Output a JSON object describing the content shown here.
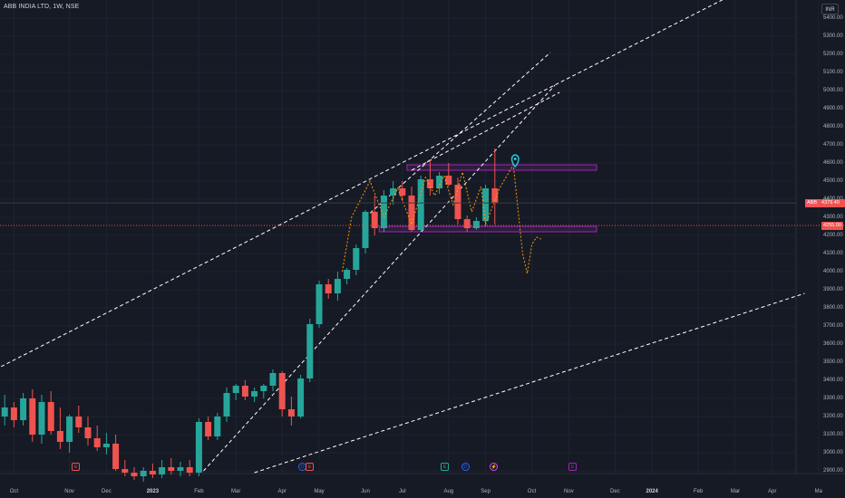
{
  "symbol_title": "ABB INDIA LTD, 1W, NSE",
  "currency": "INR",
  "price_label": {
    "symbol": "ABB",
    "value": "4379.40"
  },
  "line_label": "4255.00",
  "markers": [
    "E",
    "D",
    "E",
    "E",
    "D",
    "⚡",
    "E"
  ],
  "colors": {
    "background": "#161a25",
    "up": "#26a69a",
    "down": "#ef5350",
    "zone": "#9c27b0",
    "trendline": "#ffffff",
    "projection": "#ff9800"
  },
  "chart_data": {
    "type": "candlestick",
    "title": "ABB INDIA LTD, 1W, NSE",
    "xlabel": "",
    "ylabel": "",
    "ylim": [
      2900,
      5500
    ],
    "y_ticks": [
      2900,
      3000,
      3100,
      3200,
      3300,
      3400,
      3500,
      3600,
      3700,
      3800,
      3900,
      4000,
      4100,
      4200,
      4300,
      4400,
      4500,
      4600,
      4700,
      4800,
      4900,
      5000,
      5100,
      5200,
      5300,
      5400
    ],
    "y_tick_labels": [
      "2900.00",
      "3000.00",
      "3100.00",
      "3200.00",
      "3300.00",
      "3400.00",
      "3500.00",
      "3600.00",
      "3700.00",
      "3800.00",
      "3900.00",
      "4000.00",
      "4100.00",
      "4200.00",
      "4300.00",
      "4400.00",
      "4500.00",
      "4600.00",
      "4700.00",
      "4800.00",
      "4900.00",
      "5000.00",
      "5100.00",
      "5200.00",
      "5300.00",
      "5400.00"
    ],
    "x_labels": [
      "Oct",
      "Nov",
      "Dec",
      "2023",
      "Feb",
      "Mar",
      "Apr",
      "May",
      "Jun",
      "Jul",
      "Aug",
      "Sep",
      "Oct",
      "Nov",
      "Dec",
      "2024",
      "Feb",
      "Mar",
      "Apr",
      "Ma"
    ],
    "x_label_weeks": [
      2,
      8,
      12,
      17,
      22,
      26,
      31,
      35,
      40,
      44,
      49,
      53,
      58,
      62,
      67,
      71,
      76,
      80,
      84,
      89
    ],
    "candles": [
      [
        0,
        3380,
        3430,
        3150,
        3200
      ],
      [
        1,
        3200,
        3320,
        3150,
        3250
      ],
      [
        2,
        3250,
        3280,
        3140,
        3180
      ],
      [
        3,
        3180,
        3330,
        3150,
        3300
      ],
      [
        4,
        3300,
        3350,
        3060,
        3100
      ],
      [
        5,
        3100,
        3320,
        3050,
        3280
      ],
      [
        6,
        3280,
        3340,
        3100,
        3120
      ],
      [
        7,
        3120,
        3250,
        3020,
        3060
      ],
      [
        8,
        3060,
        3210,
        3000,
        3200
      ],
      [
        9,
        3200,
        3260,
        3110,
        3140
      ],
      [
        10,
        3140,
        3200,
        3040,
        3080
      ],
      [
        11,
        3080,
        3150,
        3010,
        3030
      ],
      [
        12,
        3030,
        3110,
        2990,
        3050
      ],
      [
        13,
        3050,
        3100,
        2900,
        2910
      ],
      [
        14,
        2910,
        2960,
        2870,
        2890
      ],
      [
        15,
        2890,
        2920,
        2850,
        2870
      ],
      [
        16,
        2870,
        2920,
        2840,
        2900
      ],
      [
        17,
        2900,
        2940,
        2860,
        2880
      ],
      [
        18,
        2880,
        2960,
        2860,
        2920
      ],
      [
        19,
        2920,
        2970,
        2880,
        2900
      ],
      [
        20,
        2900,
        2950,
        2870,
        2920
      ],
      [
        21,
        2920,
        2960,
        2870,
        2890
      ],
      [
        22,
        2890,
        3190,
        2870,
        3170
      ],
      [
        23,
        3170,
        3200,
        3070,
        3090
      ],
      [
        24,
        3090,
        3220,
        3070,
        3200
      ],
      [
        25,
        3200,
        3360,
        3170,
        3330
      ],
      [
        26,
        3330,
        3380,
        3290,
        3370
      ],
      [
        27,
        3370,
        3400,
        3290,
        3310
      ],
      [
        28,
        3310,
        3360,
        3280,
        3340
      ],
      [
        29,
        3340,
        3380,
        3300,
        3370
      ],
      [
        30,
        3370,
        3460,
        3340,
        3440
      ],
      [
        31,
        3440,
        3450,
        3200,
        3240
      ],
      [
        32,
        3240,
        3310,
        3150,
        3200
      ],
      [
        33,
        3200,
        3430,
        3190,
        3410
      ],
      [
        34,
        3410,
        3740,
        3390,
        3710
      ],
      [
        35,
        3710,
        3950,
        3690,
        3930
      ],
      [
        36,
        3930,
        3960,
        3850,
        3880
      ],
      [
        37,
        3880,
        4000,
        3840,
        3960
      ],
      [
        38,
        3960,
        4020,
        3930,
        4010
      ],
      [
        39,
        4010,
        4150,
        3980,
        4130
      ],
      [
        40,
        4130,
        4340,
        4100,
        4330
      ],
      [
        41,
        4330,
        4420,
        4200,
        4240
      ],
      [
        42,
        4240,
        4450,
        4220,
        4420
      ],
      [
        43,
        4420,
        4500,
        4370,
        4460
      ],
      [
        44,
        4460,
        4500,
        4390,
        4420
      ],
      [
        45,
        4420,
        4470,
        4220,
        4230
      ],
      [
        46,
        4230,
        4530,
        4220,
        4510
      ],
      [
        47,
        4510,
        4620,
        4420,
        4460
      ],
      [
        48,
        4460,
        4550,
        4430,
        4530
      ],
      [
        49,
        4530,
        4600,
        4470,
        4480
      ],
      [
        50,
        4480,
        4520,
        4260,
        4290
      ],
      [
        51,
        4290,
        4310,
        4220,
        4240
      ],
      [
        52,
        4240,
        4300,
        4230,
        4280
      ],
      [
        53,
        4280,
        4480,
        4250,
        4460
      ],
      [
        54,
        4460,
        4680,
        4260,
        4380
      ]
    ]
  }
}
